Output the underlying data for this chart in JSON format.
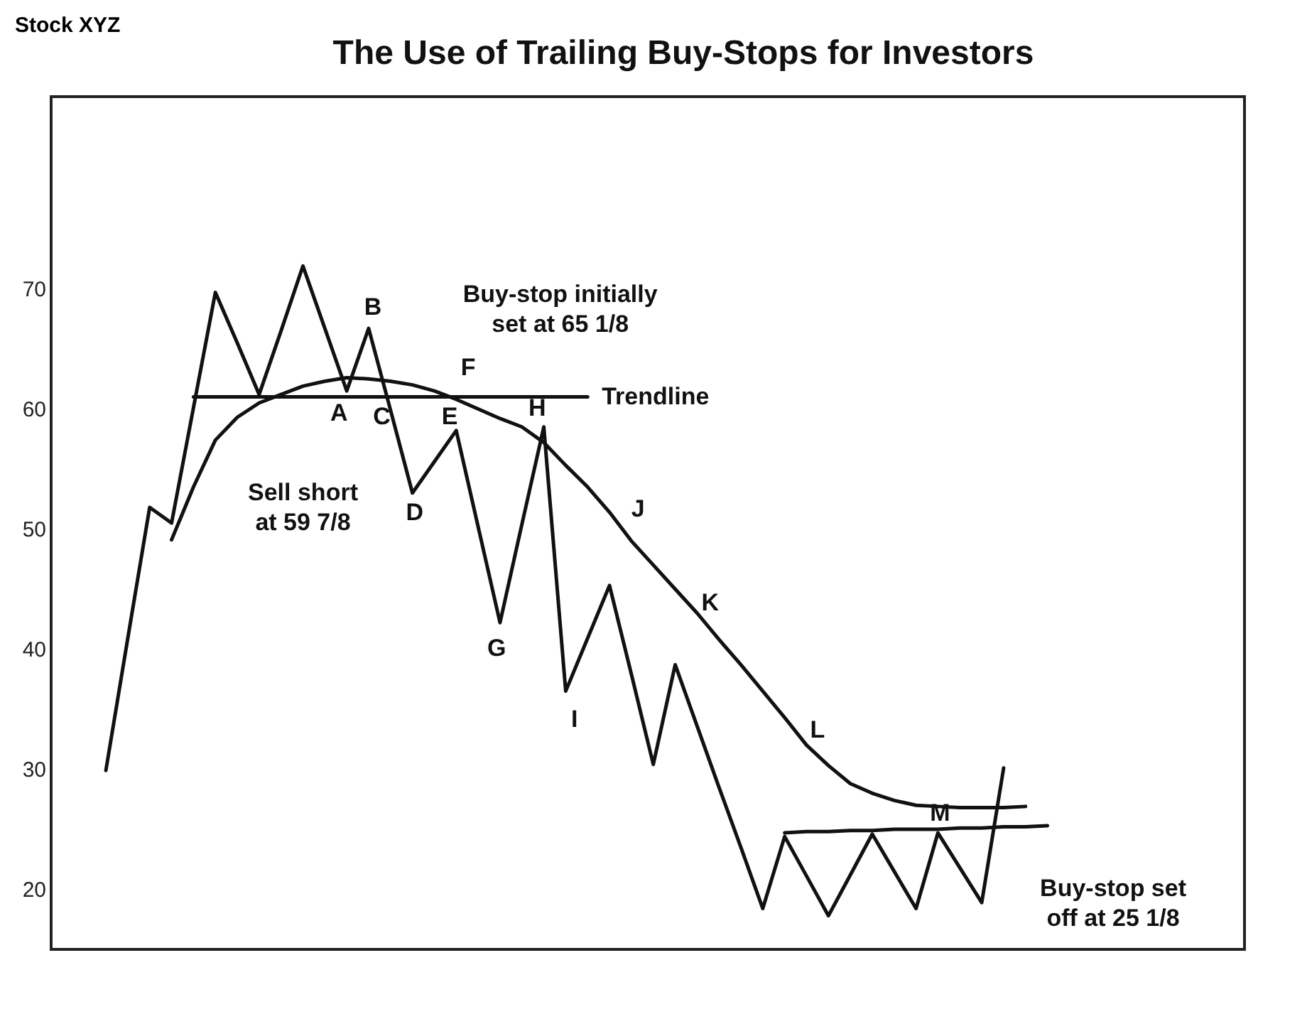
{
  "chart_data": {
    "type": "line",
    "title": "The Use of Trailing Buy-Stops for Investors",
    "ylabel": "Stock XYZ",
    "categories": [
      null,
      null,
      null,
      null,
      null,
      null,
      null,
      null,
      null,
      null,
      null,
      null,
      null,
      null,
      null,
      null,
      null,
      null,
      null,
      null,
      null,
      null,
      null,
      null,
      null,
      null,
      null,
      null,
      null,
      null,
      null,
      null,
      null,
      null,
      null,
      null,
      null,
      null,
      null,
      null,
      null,
      null,
      null,
      null,
      null
    ],
    "ylim": [
      15,
      86
    ],
    "yticks": [
      20,
      30,
      40,
      50,
      60,
      70
    ],
    "tick_labels": "y",
    "grid": false,
    "legend": false,
    "marker": "none",
    "line_style": "solid",
    "series": [
      {
        "color": "#111111",
        "values": [
          null,
          29.9,
          40.9,
          51.8,
          50.5,
          60.1,
          69.7,
          65.5,
          61.2,
          66.5,
          71.9,
          66.7,
          61.5,
          66.7,
          59.9,
          53.0,
          55.6,
          58.2,
          50.2,
          42.2,
          50.4,
          58.5,
          36.5,
          40.9,
          45.3,
          37.9,
          30.4,
          38.7,
          33.6,
          28.5,
          23.5,
          18.4,
          24.4,
          21.1,
          17.8,
          21.2,
          24.6,
          21.5,
          18.4,
          24.7,
          21.8,
          18.9,
          30.1,
          null,
          null
        ]
      },
      {
        "color": "#111111",
        "values": [
          null,
          null,
          null,
          null,
          49.1,
          53.5,
          57.4,
          59.3,
          60.5,
          61.2,
          61.9,
          62.3,
          62.6,
          62.5,
          62.3,
          62.0,
          61.5,
          60.8,
          60.0,
          59.2,
          58.5,
          57.2,
          55.3,
          53.5,
          51.4,
          49.0,
          47.0,
          45.0,
          43.0,
          40.8,
          38.7,
          36.5,
          34.3,
          32.0,
          30.3,
          28.8,
          28.0,
          27.4,
          27.0,
          26.9,
          26.8,
          26.8,
          26.8,
          26.9,
          null
        ]
      },
      {
        "name": "Trendline",
        "color": "#111111",
        "values": [
          null,
          null,
          null,
          null,
          null,
          61.0,
          61.0,
          61.0,
          61.0,
          61.0,
          61.0,
          61.0,
          61.0,
          61.0,
          61.0,
          61.0,
          61.0,
          61.0,
          61.0,
          61.0,
          61.0,
          61.0,
          61.0,
          61.0,
          null,
          null,
          null,
          null,
          null,
          null,
          null,
          null,
          null,
          null,
          null,
          null,
          null,
          null,
          null,
          null,
          null,
          null,
          null,
          null,
          null
        ]
      },
      {
        "color": "#111111",
        "values": [
          null,
          null,
          null,
          null,
          null,
          null,
          null,
          null,
          null,
          null,
          null,
          null,
          null,
          null,
          null,
          null,
          null,
          null,
          null,
          null,
          null,
          null,
          null,
          null,
          null,
          null,
          null,
          null,
          null,
          null,
          null,
          null,
          24.7,
          24.8,
          24.8,
          24.9,
          24.9,
          25.0,
          25.0,
          25.0,
          25.1,
          25.1,
          25.2,
          25.2,
          25.3
        ]
      }
    ],
    "annotations": [
      "A",
      "B",
      "C",
      "D",
      "E",
      "F",
      "G",
      "H",
      "I",
      "J",
      "K",
      "L",
      "M",
      "Buy-stop initially\nset at 65 1/8",
      "Sell short\nat 59 7/8",
      "Buy-stop set\noff at 25 1/8"
    ]
  }
}
